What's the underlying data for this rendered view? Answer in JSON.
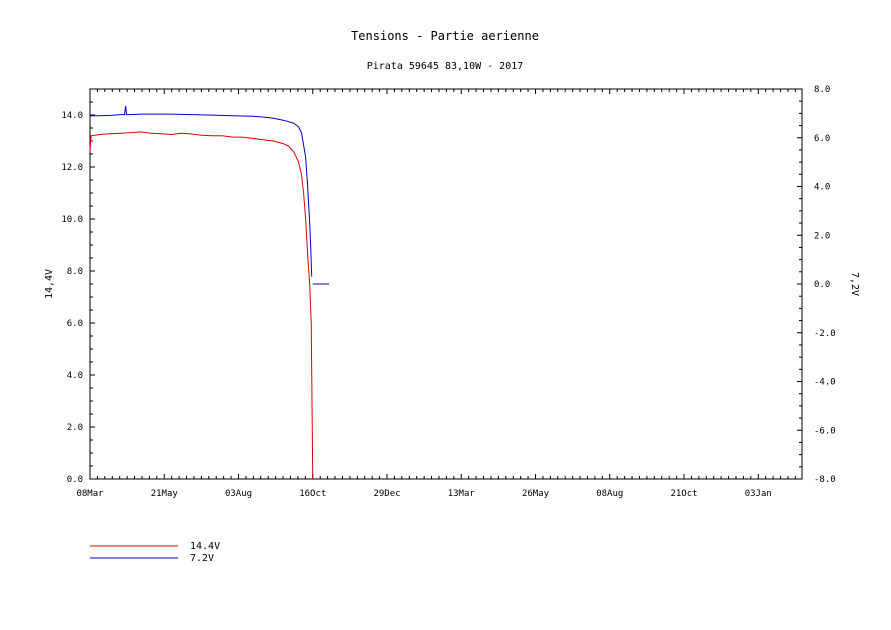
{
  "chart_data": {
    "type": "line",
    "title": "Tensions - Partie aerienne",
    "subtitle": "Pirata 59645 83,10W - 2017",
    "ylabel_left": "14,4V",
    "ylabel_right": "7,2V",
    "ylim_left": [
      0,
      15
    ],
    "ylim_right": [
      -8,
      8
    ],
    "yticks_left": [
      "0.0",
      "2.0",
      "4.0",
      "6.0",
      "8.0",
      "10.0",
      "12.0",
      "14.0"
    ],
    "yticks_right": [
      "-8.0",
      "-6.0",
      "-4.0",
      "-2.0",
      "0.0",
      "2.0",
      "4.0",
      "6.0",
      "8.0"
    ],
    "xticks": [
      "08Mar",
      "21May",
      "03Aug",
      "16Oct",
      "29Dec",
      "13Mar",
      "26May",
      "08Aug",
      "21Oct",
      "03Jan"
    ],
    "xlim_days": [
      0,
      700
    ],
    "grid": false,
    "legend_position": "bottom-left",
    "series": [
      {
        "name": "14.4V",
        "axis": "left",
        "color": "#dd0000",
        "x": [
          0,
          1,
          10,
          20,
          30,
          40,
          50,
          60,
          70,
          80,
          90,
          100,
          110,
          120,
          130,
          140,
          150,
          160,
          170,
          180,
          190,
          195,
          200,
          205,
          208,
          210,
          212,
          214,
          216,
          217.5,
          218.5,
          219
        ],
        "y": [
          12.6,
          13.2,
          13.25,
          13.28,
          13.3,
          13.32,
          13.35,
          13.3,
          13.28,
          13.25,
          13.3,
          13.27,
          13.22,
          13.2,
          13.2,
          13.15,
          13.15,
          13.1,
          13.05,
          13.0,
          12.9,
          12.8,
          12.6,
          12.2,
          11.7,
          11.0,
          10.0,
          8.6,
          7.5,
          6.0,
          2.0,
          0.0
        ]
      },
      {
        "name": "7.2V",
        "axis": "right",
        "color": "#0000cc",
        "x": [
          0,
          1,
          10,
          20,
          30,
          34,
          35,
          36,
          40,
          50,
          60,
          80,
          100,
          120,
          140,
          160,
          170,
          180,
          190,
          200,
          205,
          208,
          210,
          212,
          214,
          216,
          217,
          218
        ],
        "y": [
          6.9,
          6.9,
          6.9,
          6.92,
          6.95,
          6.95,
          7.3,
          6.95,
          6.95,
          6.97,
          6.97,
          6.97,
          6.95,
          6.93,
          6.9,
          6.88,
          6.85,
          6.8,
          6.72,
          6.6,
          6.45,
          6.2,
          5.7,
          5.2,
          4.0,
          2.5,
          1.5,
          0.3
        ]
      },
      {
        "name": "",
        "axis": "right",
        "color": "#0000cc",
        "x": [
          219,
          235
        ],
        "y": [
          0.0,
          0.0
        ]
      }
    ]
  }
}
